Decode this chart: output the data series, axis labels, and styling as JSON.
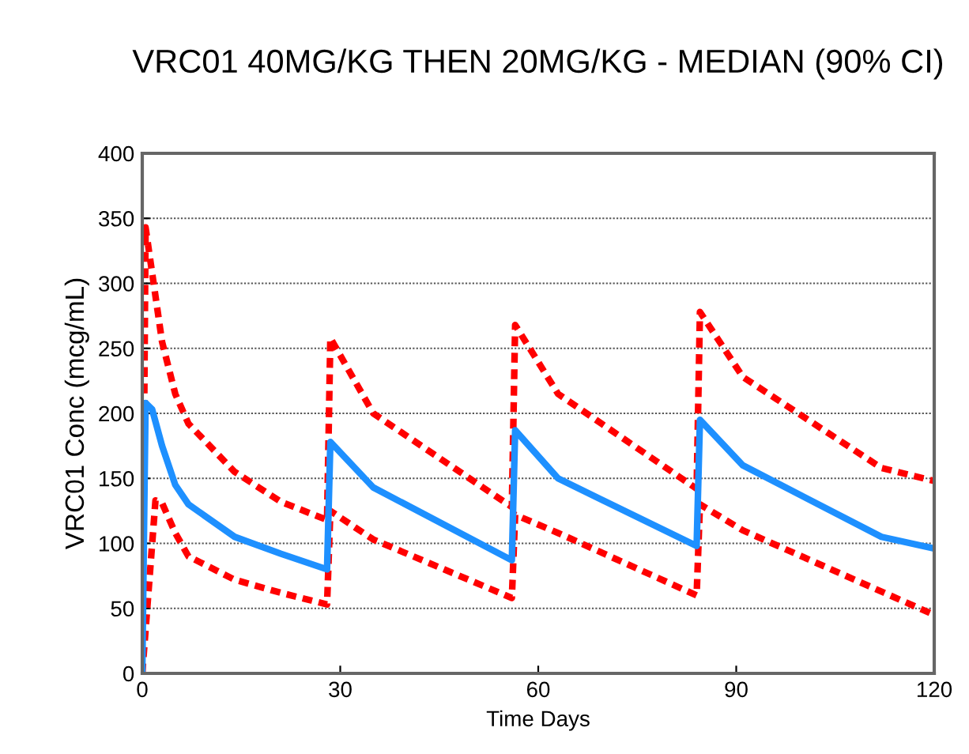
{
  "chart_data": {
    "type": "line",
    "title": "VRC01 40MG/KG THEN 20MG/KG - MEDIAN (90% CI)",
    "xlabel": "Time Days",
    "ylabel": "VRC01 Conc (mcg/mL)",
    "xlim": [
      0,
      120
    ],
    "xticks": [
      0,
      30,
      60,
      90,
      120
    ],
    "ylim": [
      0,
      400
    ],
    "yticks": [
      0,
      50,
      100,
      150,
      200,
      250,
      300,
      350,
      400
    ],
    "grid": "y",
    "legend": false,
    "marker": "none",
    "series": [
      {
        "color": "#ff0000",
        "line_style": "dashed",
        "x": [
          0,
          0.5,
          3,
          5,
          7,
          14,
          21,
          28,
          28.5,
          35,
          56,
          56.5,
          63,
          84,
          84.5,
          91,
          112,
          120
        ],
        "values": [
          0,
          343,
          255,
          215,
          192,
          155,
          132,
          118,
          258,
          200,
          128,
          268,
          215,
          142,
          278,
          228,
          158,
          148
        ]
      },
      {
        "color": "#ff0000",
        "line_style": "dashed",
        "x": [
          0,
          2,
          3,
          5,
          7,
          14,
          21,
          28,
          28.5,
          35,
          56,
          56.5,
          63,
          84,
          84.5,
          91,
          120
        ],
        "values": [
          0,
          133,
          131,
          108,
          90,
          72,
          62,
          53,
          125,
          103,
          58,
          122,
          108,
          60,
          130,
          110,
          45
        ]
      },
      {
        "color": "#1e90ff",
        "line_style": "solid",
        "x": [
          0,
          0.5,
          1.5,
          3,
          5,
          7,
          14,
          21,
          28,
          28.5,
          35,
          56,
          56.5,
          63,
          84,
          84.5,
          91,
          112,
          120
        ],
        "values": [
          0,
          208,
          203,
          175,
          145,
          130,
          105,
          92,
          80,
          178,
          143,
          87,
          187,
          150,
          98,
          195,
          160,
          105,
          96
        ]
      }
    ]
  }
}
